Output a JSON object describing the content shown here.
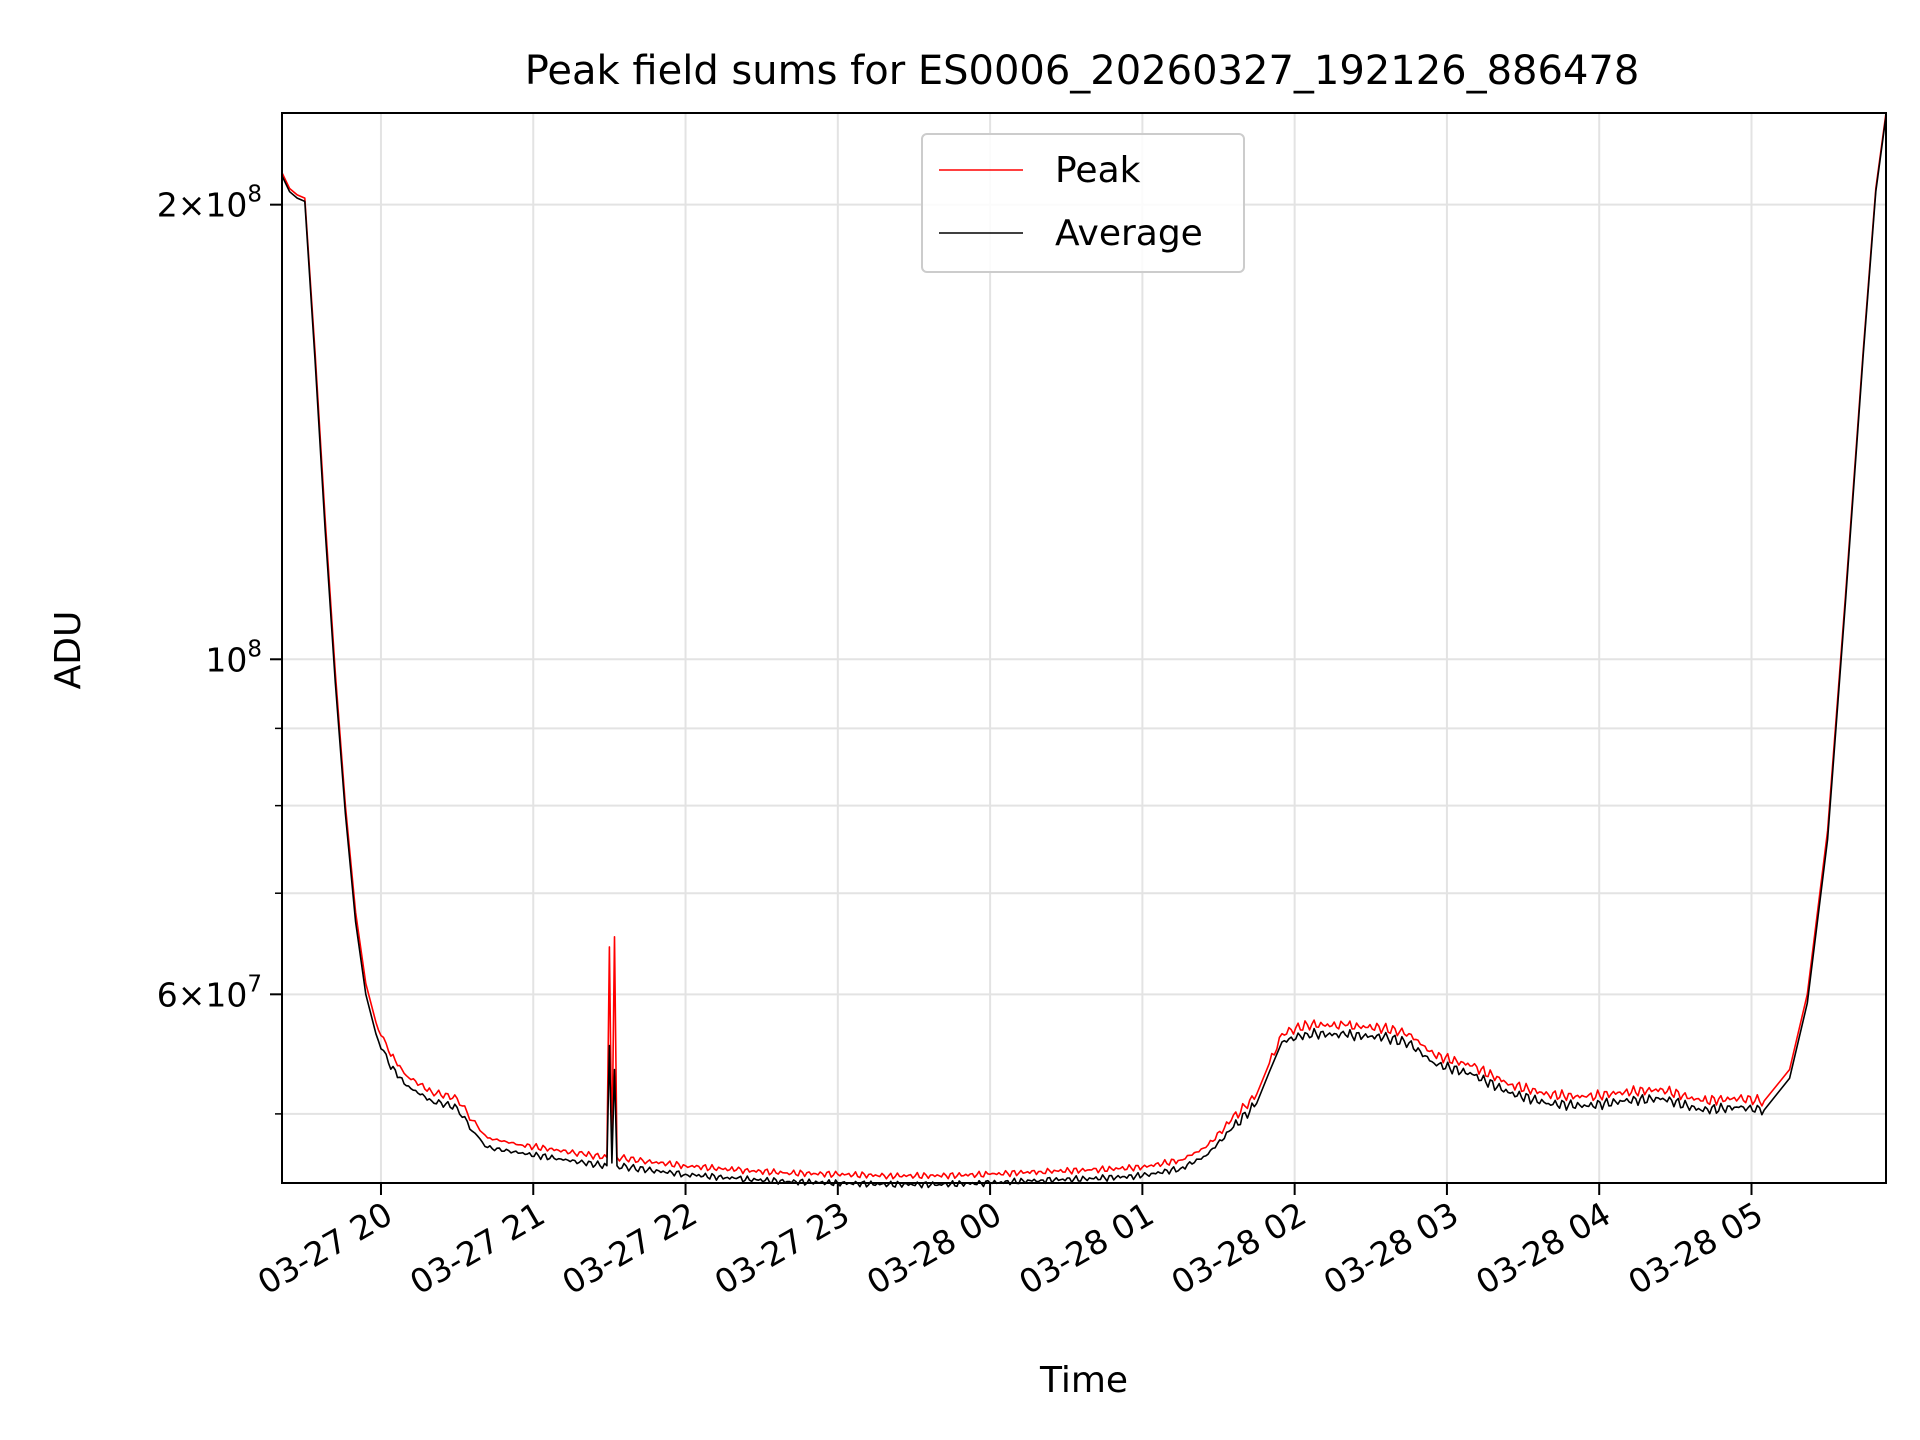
{
  "chart_data": {
    "type": "line",
    "title": "Peak field sums for ES0006_20260327_192126_886478",
    "xlabel": "Time",
    "ylabel": "ADU",
    "yscale": "log",
    "ylim": [
      45000000,
      230000000
    ],
    "xlim": [
      "2026-03-27 19:21",
      "2026-03-28 05:53"
    ],
    "grid": true,
    "legend_position": "upper center",
    "x_ticks": [
      {
        "t": "2026-03-27 20:00",
        "label": "03-27 20"
      },
      {
        "t": "2026-03-27 21:00",
        "label": "03-27 21"
      },
      {
        "t": "2026-03-27 22:00",
        "label": "03-27 22"
      },
      {
        "t": "2026-03-27 23:00",
        "label": "03-27 23"
      },
      {
        "t": "2026-03-28 00:00",
        "label": "03-28 00"
      },
      {
        "t": "2026-03-28 01:00",
        "label": "03-28 01"
      },
      {
        "t": "2026-03-28 02:00",
        "label": "03-28 02"
      },
      {
        "t": "2026-03-28 03:00",
        "label": "03-28 03"
      },
      {
        "t": "2026-03-28 04:00",
        "label": "03-28 04"
      },
      {
        "t": "2026-03-28 05:00",
        "label": "03-28 05"
      }
    ],
    "y_major_ticks": [
      {
        "v": 60000000,
        "base": "6",
        "exp": "7"
      },
      {
        "v": 100000000,
        "base": "",
        "exp": "8"
      },
      {
        "v": 200000000,
        "base": "2",
        "exp": "8"
      }
    ],
    "y_minor_ticks": [
      50000000,
      70000000,
      80000000,
      90000000
    ],
    "series": [
      {
        "name": "Peak",
        "color": "#ff0000",
        "points": [
          [
            "2026-03-27 19:21",
            210000000
          ],
          [
            "2026-03-27 19:24",
            205000000
          ],
          [
            "2026-03-27 19:27",
            203000000
          ],
          [
            "2026-03-27 19:30",
            202000000
          ],
          [
            "2026-03-27 19:34",
            160000000
          ],
          [
            "2026-03-27 19:38",
            124000000
          ],
          [
            "2026-03-27 19:42",
            98000000
          ],
          [
            "2026-03-27 19:46",
            80000000
          ],
          [
            "2026-03-27 19:50",
            68000000
          ],
          [
            "2026-03-27 19:54",
            61000000
          ],
          [
            "2026-03-27 19:58",
            57500000
          ],
          [
            "2026-03-27 20:03",
            55000000
          ],
          [
            "2026-03-27 20:10",
            53000000
          ],
          [
            "2026-03-27 20:20",
            51700000
          ],
          [
            "2026-03-27 20:30",
            51200000
          ],
          [
            "2026-03-27 20:36",
            49500000
          ],
          [
            "2026-03-27 20:42",
            48200000
          ],
          [
            "2026-03-27 20:55",
            47700000
          ],
          [
            "2026-03-27 21:10",
            47300000
          ],
          [
            "2026-03-27 21:20",
            47000000
          ],
          [
            "2026-03-27 21:29",
            46800000
          ],
          [
            "2026-03-27 21:30",
            64500000
          ],
          [
            "2026-03-27 21:31",
            47000000
          ],
          [
            "2026-03-27 21:32",
            65500000
          ],
          [
            "2026-03-27 21:33",
            46800000
          ],
          [
            "2026-03-27 21:45",
            46500000
          ],
          [
            "2026-03-27 22:00",
            46200000
          ],
          [
            "2026-03-27 22:20",
            45900000
          ],
          [
            "2026-03-27 22:40",
            45700000
          ],
          [
            "2026-03-27 23:00",
            45600000
          ],
          [
            "2026-03-27 23:20",
            45500000
          ],
          [
            "2026-03-27 23:40",
            45500000
          ],
          [
            "2026-03-28 00:00",
            45600000
          ],
          [
            "2026-03-28 00:20",
            45800000
          ],
          [
            "2026-03-28 00:40",
            45900000
          ],
          [
            "2026-03-28 01:00",
            46100000
          ],
          [
            "2026-03-28 01:15",
            46600000
          ],
          [
            "2026-03-28 01:25",
            47500000
          ],
          [
            "2026-03-28 01:35",
            49500000
          ],
          [
            "2026-03-28 01:45",
            51500000
          ],
          [
            "2026-03-28 01:50",
            54000000
          ],
          [
            "2026-03-28 01:55",
            56500000
          ],
          [
            "2026-03-28 02:05",
            57300000
          ],
          [
            "2026-03-28 02:20",
            57200000
          ],
          [
            "2026-03-28 02:35",
            57000000
          ],
          [
            "2026-03-28 02:45",
            56500000
          ],
          [
            "2026-03-28 02:55",
            54700000
          ],
          [
            "2026-03-28 03:10",
            53800000
          ],
          [
            "2026-03-28 03:25",
            52300000
          ],
          [
            "2026-03-28 03:40",
            51500000
          ],
          [
            "2026-03-28 03:55",
            51300000
          ],
          [
            "2026-03-28 04:10",
            51700000
          ],
          [
            "2026-03-28 04:25",
            51900000
          ],
          [
            "2026-03-28 04:40",
            51000000
          ],
          [
            "2026-03-28 04:55",
            51200000
          ],
          [
            "2026-03-28 05:05",
            51000000
          ],
          [
            "2026-03-28 05:15",
            53500000
          ],
          [
            "2026-03-28 05:22",
            60000000
          ],
          [
            "2026-03-28 05:30",
            77000000
          ],
          [
            "2026-03-28 05:37",
            110000000
          ],
          [
            "2026-03-28 05:44",
            160000000
          ],
          [
            "2026-03-28 05:49",
            205000000
          ],
          [
            "2026-03-28 05:53",
            230000000
          ]
        ]
      },
      {
        "name": "Average",
        "color": "#000000",
        "points": [
          [
            "2026-03-27 19:21",
            209000000
          ],
          [
            "2026-03-27 19:24",
            204000000
          ],
          [
            "2026-03-27 19:27",
            202000000
          ],
          [
            "2026-03-27 19:30",
            201000000
          ],
          [
            "2026-03-27 19:34",
            158000000
          ],
          [
            "2026-03-27 19:38",
            122000000
          ],
          [
            "2026-03-27 19:42",
            96500000
          ],
          [
            "2026-03-27 19:46",
            79000000
          ],
          [
            "2026-03-27 19:50",
            67000000
          ],
          [
            "2026-03-27 19:54",
            60000000
          ],
          [
            "2026-03-27 19:58",
            56500000
          ],
          [
            "2026-03-27 20:03",
            54000000
          ],
          [
            "2026-03-27 20:10",
            52200000
          ],
          [
            "2026-03-27 20:20",
            51000000
          ],
          [
            "2026-03-27 20:30",
            50500000
          ],
          [
            "2026-03-27 20:36",
            48700000
          ],
          [
            "2026-03-27 20:42",
            47500000
          ],
          [
            "2026-03-27 20:55",
            47100000
          ],
          [
            "2026-03-27 21:10",
            46700000
          ],
          [
            "2026-03-27 21:20",
            46400000
          ],
          [
            "2026-03-27 21:29",
            46200000
          ],
          [
            "2026-03-27 21:30",
            55500000
          ],
          [
            "2026-03-27 21:31",
            46400000
          ],
          [
            "2026-03-27 21:32",
            53500000
          ],
          [
            "2026-03-27 21:33",
            46200000
          ],
          [
            "2026-03-27 21:45",
            45900000
          ],
          [
            "2026-03-27 22:00",
            45600000
          ],
          [
            "2026-03-27 22:20",
            45300000
          ],
          [
            "2026-03-27 22:40",
            45100000
          ],
          [
            "2026-03-27 23:00",
            45000000
          ],
          [
            "2026-03-27 23:20",
            44900000
          ],
          [
            "2026-03-27 23:40",
            44900000
          ],
          [
            "2026-03-28 00:00",
            45000000
          ],
          [
            "2026-03-28 00:20",
            45200000
          ],
          [
            "2026-03-28 00:40",
            45300000
          ],
          [
            "2026-03-28 01:00",
            45500000
          ],
          [
            "2026-03-28 01:15",
            46000000
          ],
          [
            "2026-03-28 01:25",
            46900000
          ],
          [
            "2026-03-28 01:35",
            48800000
          ],
          [
            "2026-03-28 01:45",
            50800000
          ],
          [
            "2026-03-28 01:50",
            53300000
          ],
          [
            "2026-03-28 01:55",
            55800000
          ],
          [
            "2026-03-28 02:05",
            56500000
          ],
          [
            "2026-03-28 02:20",
            56400000
          ],
          [
            "2026-03-28 02:35",
            56200000
          ],
          [
            "2026-03-28 02:45",
            55700000
          ],
          [
            "2026-03-28 02:55",
            54000000
          ],
          [
            "2026-03-28 03:10",
            53100000
          ],
          [
            "2026-03-28 03:25",
            51600000
          ],
          [
            "2026-03-28 03:40",
            50800000
          ],
          [
            "2026-03-28 03:55",
            50600000
          ],
          [
            "2026-03-28 04:10",
            51000000
          ],
          [
            "2026-03-28 04:25",
            51200000
          ],
          [
            "2026-03-28 04:40",
            50300000
          ],
          [
            "2026-03-28 04:55",
            50500000
          ],
          [
            "2026-03-28 05:05",
            50300000
          ],
          [
            "2026-03-28 05:15",
            52800000
          ],
          [
            "2026-03-28 05:22",
            59200000
          ],
          [
            "2026-03-28 05:30",
            76000000
          ],
          [
            "2026-03-28 05:37",
            109000000
          ],
          [
            "2026-03-28 05:44",
            159000000
          ],
          [
            "2026-03-28 05:49",
            204000000
          ],
          [
            "2026-03-28 05:53",
            229000000
          ]
        ]
      }
    ]
  }
}
